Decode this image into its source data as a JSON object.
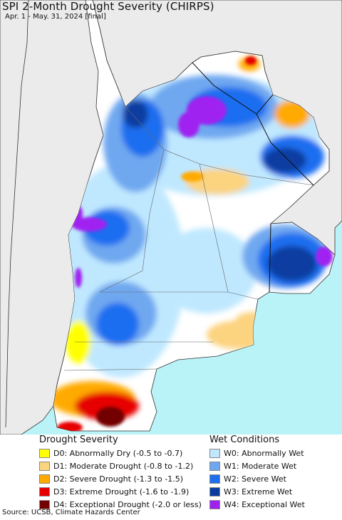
{
  "header": {
    "title": "SPI 2-Month Drought Severity (CHIRPS)",
    "subtitle": "Apr. 1 - May. 31, 2024 [final]"
  },
  "legend": {
    "drought": {
      "heading": "Drought Severity",
      "items": [
        {
          "label": "D0: Abnormally Dry (-0.5 to -0.7)",
          "color": "#ffff00"
        },
        {
          "label": "D1: Moderate Drought (-0.8 to -1.2)",
          "color": "#fcd37f"
        },
        {
          "label": "D2: Severe Drought (-1.3 to -1.5)",
          "color": "#ffaa00"
        },
        {
          "label": "D3: Extreme Drought (-1.6 to -1.9)",
          "color": "#e60000"
        },
        {
          "label": "D4: Exceptional Drought (-2.0 or less)",
          "color": "#730000"
        }
      ]
    },
    "wet": {
      "heading": "Wet Conditions",
      "items": [
        {
          "label": "W0: Abnormally Wet",
          "color": "#bfe8ff"
        },
        {
          "label": "W1: Moderate Wet",
          "color": "#6fa8f0"
        },
        {
          "label": "W2: Severe Wet",
          "color": "#1e6ef0"
        },
        {
          "label": "W3: Extreme Wet",
          "color": "#0a3ca0"
        },
        {
          "label": "W4: Exceptional Wet",
          "color": "#a020f0"
        }
      ]
    }
  },
  "map_colors": {
    "ocean": "#b9f3f7",
    "outside_land": "#ebebeb",
    "normal_land": "#ffffff",
    "border": "#333333"
  },
  "source": "Source: UCSB, Climate Hazards Center"
}
